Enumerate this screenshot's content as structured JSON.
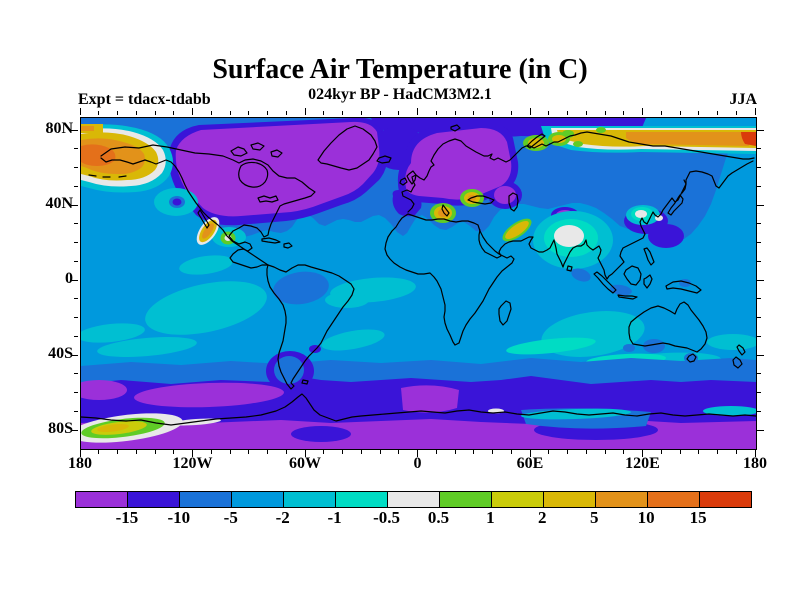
{
  "figure": {
    "title": "Surface Air Temperature (in C)",
    "subtitle": "024kyr BP - HadCM3M2.1",
    "experiment": "Expt = tdacx-tdabb",
    "season": "JJA"
  },
  "axes": {
    "y_tick_labels": [
      "80N",
      "40N",
      "0",
      "40S",
      "80S"
    ],
    "x_tick_labels": [
      "180",
      "120W",
      "60W",
      "0",
      "60E",
      "120E",
      "180"
    ]
  },
  "colorbar": {
    "boundary_labels": [
      "-15",
      "-10",
      "-5",
      "-2",
      "-1",
      "-0.5",
      "0.5",
      "1",
      "2",
      "5",
      "10",
      "15"
    ],
    "colors": [
      "#9B30D9",
      "#3A14D8",
      "#1A72D8",
      "#0099DD",
      "#00BFD2",
      "#00DCC4",
      "#E8E8E8",
      "#5FCC26",
      "#CACC0A",
      "#D9B807",
      "#E2921A",
      "#E4701A",
      "#DA3B0B"
    ]
  },
  "chart_data": {
    "type": "heatmap",
    "subtype": "filled-contour global map, lat-lon projection",
    "title": "Surface Air Temperature (in C)",
    "subtitle": "024kyr BP - HadCM3M2.1",
    "experiment": "tdacx-tdabb",
    "season": "JJA",
    "units": "degrees C (temperature difference)",
    "lon_range": [
      -180,
      180
    ],
    "lat_range": [
      -90,
      90
    ],
    "x_ticks_deg": [
      -180,
      -120,
      -60,
      0,
      60,
      120,
      180
    ],
    "y_ticks_deg": [
      80,
      40,
      0,
      -40,
      -80
    ],
    "minor_tick_interval_deg": 10,
    "grid": false,
    "legend_position": "horizontal colorbar below map",
    "contour_levels": [
      -15,
      -10,
      -5,
      -2,
      -1,
      -0.5,
      0.5,
      1,
      2,
      5,
      10,
      15
    ],
    "palette": [
      "#9B30D9",
      "#3A14D8",
      "#1A72D8",
      "#0099DD",
      "#00BFD2",
      "#00DCC4",
      "#E8E8E8",
      "#5FCC26",
      "#CACC0A",
      "#D9B807",
      "#E2921A",
      "#E4701A",
      "#DA3B0B"
    ],
    "features": [
      {
        "region": "North America / Laurentide ice sheet and Greenland",
        "anomaly_C": "below -15"
      },
      {
        "region": "Scandinavia / Fennoscandian ice sheet into central Europe",
        "anomaly_C": "below -15"
      },
      {
        "region": "Rings around ice sheets, North Atlantic, NE Siberia, Sea of Okhotsk",
        "anomaly_C": "-15 to -10"
      },
      {
        "region": "Northern mid-latitude continents, Amazon basin, Patagonia, NW Africa",
        "anomaly_C": "-10 to -5"
      },
      {
        "region": "Most of the world ocean and tropical land",
        "anomaly_C": "-5 to -2"
      },
      {
        "region": "Central tropical Pacific, equatorial Atlantic, Indian Ocean west of Australia",
        "anomaly_C": "-2 to -1"
      },
      {
        "region": "Northwest India core, Yucatan spot, Korea coast spots",
        "anomaly_C": "-0.5 to +0.5"
      },
      {
        "region": "Alaska / Bering Sea",
        "anomaly_C": "+2 to +15"
      },
      {
        "region": "East Siberian Arctic coast band",
        "anomaly_C": "+2 to above +15 at far east"
      },
      {
        "region": "Kara Sea spots, Sicily, Aegean, Zagros, Gulf of California",
        "anomaly_C": "+1 to +10"
      },
      {
        "region": "Southern Ocean 50S-65S band",
        "anomaly_C": "-15 to -10 with streaks below -15"
      },
      {
        "region": "Antarctica interior",
        "anomaly_C": "below -15"
      },
      {
        "region": "Ross Sea coastal spot",
        "anomaly_C": "-0.5 to +5"
      }
    ]
  }
}
